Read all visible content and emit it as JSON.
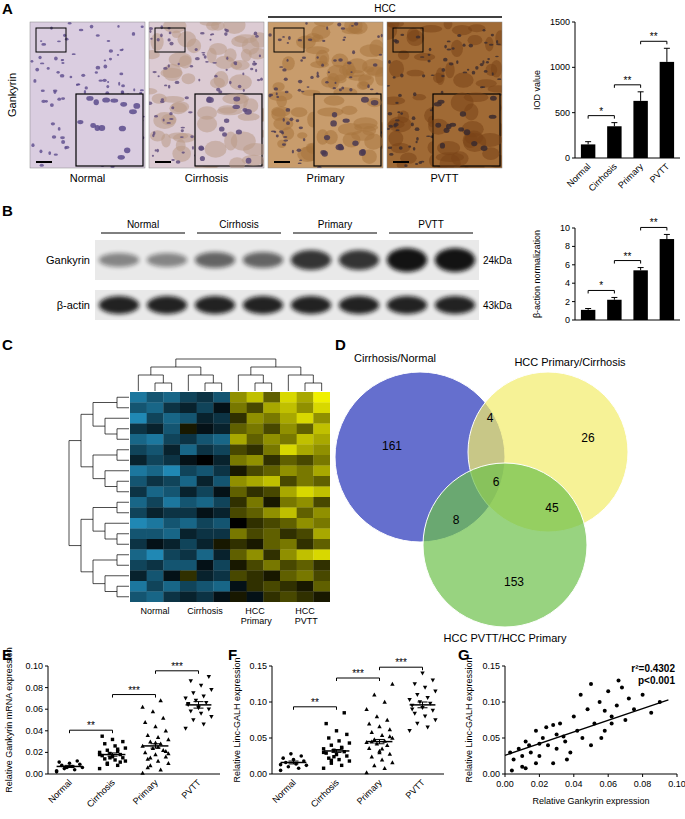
{
  "figure": {
    "panel_labels": [
      "A",
      "B",
      "C",
      "D",
      "E",
      "F",
      "G"
    ],
    "ihc": {
      "row_label": "Gankyrin",
      "group_label": "HCC",
      "images": [
        "Normal",
        "Cirrhosis",
        "Primary",
        "PVTT"
      ]
    },
    "blot": {
      "groups": [
        "Normal",
        "Cirrhosis",
        "Primary",
        "PVTT"
      ],
      "rows": [
        {
          "name": "Gankyrin",
          "size": "24kDa"
        },
        {
          "name": "β-actin",
          "size": "43kDa"
        }
      ]
    }
  },
  "chart_data": [
    {
      "type": "bar",
      "categories": [
        "Normal",
        "Cirrhosis",
        "Primary",
        "PVTT"
      ],
      "values": [
        150,
        350,
        630,
        1060
      ],
      "errors": [
        30,
        40,
        100,
        150
      ],
      "y_label": "IOD value",
      "ylim": [
        0,
        1500
      ],
      "yticks": [
        0,
        500,
        1000,
        1500
      ],
      "color": "#000000",
      "significance": [
        "*",
        "**",
        "**"
      ]
    },
    {
      "type": "bar",
      "categories": [
        null,
        null,
        null,
        null
      ],
      "values": [
        1.1,
        2.2,
        5.4,
        8.8
      ],
      "errors": [
        0.15,
        0.25,
        0.3,
        0.5
      ],
      "y_label": "β-action normalization",
      "ylim": [
        0,
        10
      ],
      "yticks": [
        0,
        2,
        4,
        6,
        8,
        10
      ],
      "color": "#000000",
      "significance": [
        "*",
        "**",
        "**"
      ]
    },
    {
      "type": "heatmap",
      "zlim": [
        -1,
        1
      ],
      "column_groups": [
        {
          "label": "Normal",
          "columns": 3
        },
        {
          "label": "Cirrhosis",
          "columns": 3
        },
        {
          "label": "HCC Primary",
          "columns": 3
        },
        {
          "label": "HCC PVTT",
          "columns": 3
        }
      ],
      "cells": [
        [
          -0.7,
          -0.5,
          -0.6,
          -0.4,
          -0.3,
          -0.5,
          0.6,
          0.8,
          0.4,
          0.9,
          0.7,
          1.0
        ],
        [
          -0.5,
          -0.6,
          -0.3,
          -0.2,
          -0.4,
          -0.1,
          0.5,
          0.3,
          0.7,
          0.8,
          0.6,
          0.9
        ],
        [
          -0.8,
          -0.4,
          -0.6,
          -0.5,
          -0.2,
          -0.3,
          0.2,
          0.6,
          0.5,
          0.7,
          0.9,
          0.6
        ],
        [
          -0.3,
          -0.2,
          -0.5,
          0.1,
          -0.1,
          -0.2,
          0.4,
          0.5,
          0.3,
          0.6,
          0.4,
          0.8
        ],
        [
          -0.6,
          -0.7,
          -0.4,
          -0.3,
          -0.5,
          -0.6,
          0.7,
          0.4,
          0.6,
          0.5,
          0.8,
          0.7
        ],
        [
          -0.4,
          -0.5,
          -0.2,
          -0.6,
          -0.3,
          -0.4,
          0.3,
          0.2,
          0.5,
          0.9,
          0.7,
          0.6
        ],
        [
          -0.2,
          -0.4,
          -0.3,
          -0.1,
          0.0,
          -0.2,
          0.5,
          0.6,
          0.2,
          0.4,
          0.3,
          0.5
        ],
        [
          -0.7,
          -0.6,
          -0.8,
          -0.4,
          -0.5,
          -0.3,
          0.1,
          0.3,
          0.4,
          0.6,
          0.5,
          0.7
        ],
        [
          -0.5,
          -0.3,
          -0.4,
          -0.6,
          -0.2,
          -0.5,
          0.6,
          0.7,
          0.8,
          0.3,
          0.5,
          0.4
        ],
        [
          -0.3,
          -0.6,
          -0.5,
          -0.2,
          -0.4,
          -0.1,
          0.4,
          0.2,
          0.3,
          0.7,
          0.9,
          0.8
        ],
        [
          -0.6,
          -0.4,
          -0.7,
          -0.5,
          -0.6,
          -0.4,
          0.2,
          0.5,
          0.1,
          0.5,
          0.6,
          0.3
        ],
        [
          -0.4,
          -0.2,
          -0.3,
          -0.3,
          -0.1,
          -0.2,
          0.3,
          0.4,
          0.6,
          0.8,
          0.4,
          0.6
        ],
        [
          -0.8,
          -0.7,
          -0.5,
          -0.6,
          -0.4,
          -0.5,
          0.0,
          0.2,
          0.3,
          0.4,
          0.6,
          0.5
        ],
        [
          -0.5,
          -0.5,
          -0.6,
          -0.2,
          -0.3,
          -0.3,
          0.5,
          0.3,
          0.4,
          0.2,
          0.3,
          0.7
        ],
        [
          -0.3,
          -0.1,
          -0.2,
          -0.4,
          -0.2,
          0.1,
          0.2,
          0.1,
          0.4,
          0.5,
          0.2,
          0.4
        ],
        [
          -0.6,
          -0.8,
          -0.4,
          -0.3,
          -0.6,
          -0.2,
          0.4,
          0.6,
          0.2,
          0.6,
          0.8,
          0.9
        ],
        [
          -0.4,
          -0.3,
          -0.5,
          -0.5,
          -0.1,
          -0.4,
          0.1,
          0.3,
          0.5,
          0.3,
          0.4,
          0.2
        ],
        [
          -0.2,
          -0.5,
          -0.1,
          0.2,
          -0.2,
          -0.3,
          0.3,
          0.2,
          0.1,
          0.4,
          0.5,
          0.3
        ],
        [
          -0.7,
          -0.4,
          -0.6,
          -0.4,
          -0.5,
          -0.6,
          -0.1,
          0.2,
          0.3,
          0.2,
          0.1,
          0.4
        ],
        [
          -0.5,
          -0.6,
          -0.3,
          -0.2,
          -0.3,
          -0.1,
          0.1,
          -0.1,
          0.2,
          0.3,
          0.2,
          0.1
        ]
      ]
    },
    {
      "type": "venn",
      "sets": [
        "Cirrhosis/Normal",
        "HCC Primary/Cirrhosis",
        "HCC PVTT/HCC Primary"
      ],
      "colors": [
        "#4a56c6",
        "#f2ec6a",
        "#6cc04a"
      ],
      "regions": {
        "a": 161,
        "ab": 4,
        "b": 26,
        "abc": 6,
        "ac": 8,
        "bc": 45,
        "c": 153
      }
    },
    {
      "type": "strip",
      "y_label": "Relative Gankyrin mRNA expression",
      "ylim": [
        0,
        0.1
      ],
      "yticks": [
        {
          "value": 0,
          "label": "0.00"
        },
        0.02,
        0.04,
        0.06,
        0.08,
        {
          "value": 0.1,
          "label": "0.10"
        }
      ],
      "significance": [
        "**",
        "***",
        "***"
      ],
      "series": [
        {
          "name": "Normal",
          "marker": "circle",
          "values": [
            0.002,
            0.004,
            0.005,
            0.006,
            0.007,
            0.008,
            0.009,
            0.01,
            0.011,
            0.012,
            0.006,
            0.003
          ],
          "mean": 0.007,
          "error": 0.001
        },
        {
          "name": "Cirrhosis",
          "marker": "square",
          "values": [
            0.005,
            0.008,
            0.01,
            0.012,
            0.013,
            0.014,
            0.015,
            0.016,
            0.017,
            0.018,
            0.019,
            0.02,
            0.021,
            0.022,
            0.024,
            0.026,
            0.028,
            0.03,
            0.032,
            0.035,
            0.011,
            0.015,
            0.018,
            0.023,
            0.009
          ],
          "mean": 0.018,
          "error": 0.0015
        },
        {
          "name": "Primary",
          "marker": "triangle",
          "values": [
            0.001,
            0.004,
            0.008,
            0.01,
            0.012,
            0.014,
            0.016,
            0.018,
            0.02,
            0.022,
            0.024,
            0.026,
            0.028,
            0.03,
            0.032,
            0.034,
            0.036,
            0.04,
            0.044,
            0.048,
            0.052,
            0.058,
            0.062,
            0.068,
            0.015,
            0.019,
            0.025,
            0.006,
            0.021,
            0.029
          ],
          "mean": 0.026,
          "error": 0.002
        },
        {
          "name": "PVTT",
          "marker": "triangle-down",
          "values": [
            0.042,
            0.046,
            0.05,
            0.053,
            0.056,
            0.058,
            0.06,
            0.062,
            0.064,
            0.066,
            0.068,
            0.07,
            0.072,
            0.075,
            0.078,
            0.082,
            0.086,
            0.09,
            0.061,
            0.065
          ],
          "mean": 0.064,
          "error": 0.003
        }
      ]
    },
    {
      "type": "strip",
      "y_label": "Relative Linc-GALH expression",
      "ylim": [
        0,
        0.15
      ],
      "yticks": [
        {
          "value": 0,
          "label": "0.00"
        },
        0.05,
        {
          "value": 0.1,
          "label": "0.10"
        },
        0.15
      ],
      "significance": [
        "**",
        "***",
        "***"
      ],
      "series": [
        {
          "name": "Normal",
          "marker": "circle",
          "values": [
            0.005,
            0.008,
            0.01,
            0.012,
            0.014,
            0.016,
            0.018,
            0.02,
            0.022,
            0.025,
            0.028,
            0.013
          ],
          "mean": 0.016,
          "error": 0.002
        },
        {
          "name": "Cirrhosis",
          "marker": "square",
          "values": [
            0.008,
            0.012,
            0.015,
            0.018,
            0.02,
            0.022,
            0.025,
            0.027,
            0.029,
            0.031,
            0.033,
            0.035,
            0.037,
            0.04,
            0.043,
            0.046,
            0.05,
            0.055,
            0.06,
            0.07,
            0.085,
            0.024,
            0.03,
            0.036,
            0.019
          ],
          "mean": 0.032,
          "error": 0.002
        },
        {
          "name": "Primary",
          "marker": "triangle",
          "values": [
            0.002,
            0.008,
            0.012,
            0.016,
            0.02,
            0.024,
            0.028,
            0.032,
            0.036,
            0.04,
            0.042,
            0.044,
            0.046,
            0.048,
            0.05,
            0.054,
            0.058,
            0.062,
            0.066,
            0.07,
            0.075,
            0.08,
            0.09,
            0.1,
            0.11,
            0.125,
            0.035,
            0.045,
            0.052,
            0.03
          ],
          "mean": 0.045,
          "error": 0.003
        },
        {
          "name": "PVTT",
          "marker": "triangle-down",
          "values": [
            0.06,
            0.065,
            0.07,
            0.075,
            0.08,
            0.084,
            0.088,
            0.092,
            0.095,
            0.098,
            0.1,
            0.103,
            0.106,
            0.11,
            0.115,
            0.12,
            0.125,
            0.13,
            0.14,
            0.09
          ],
          "mean": 0.096,
          "error": 0.004
        }
      ]
    },
    {
      "type": "scatter",
      "x_label": "Relative Gankyrin expression",
      "y_label": "Relative Linc-GALH expression",
      "xlim": [
        0,
        0.1
      ],
      "xticks": [
        {
          "value": 0,
          "label": "0.00"
        },
        0.02,
        0.04,
        0.06,
        0.08,
        {
          "value": 0.1,
          "label": "0.10"
        }
      ],
      "ylim": [
        0,
        0.15
      ],
      "yticks": [
        {
          "value": 0,
          "label": "0.00"
        },
        0.05,
        {
          "value": 0.1,
          "label": "0.10"
        },
        0.15
      ],
      "annotations": [
        "r²=0.4302",
        "p<0.001"
      ],
      "x": [
        0.005,
        0.008,
        0.01,
        0.012,
        0.015,
        0.018,
        0.02,
        0.022,
        0.025,
        0.028,
        0.03,
        0.032,
        0.035,
        0.038,
        0.04,
        0.042,
        0.045,
        0.048,
        0.05,
        0.052,
        0.055,
        0.058,
        0.06,
        0.062,
        0.065,
        0.068,
        0.07,
        0.072,
        0.075,
        0.08,
        0.085,
        0.09,
        0.004,
        0.01,
        0.014,
        0.018,
        0.024,
        0.03,
        0.036,
        0.044,
        0.05,
        0.056,
        0.062,
        0.066,
        0.003,
        0.012,
        0.02,
        0.028,
        0.034,
        0.058
      ],
      "values": [
        0.02,
        0.035,
        0.01,
        0.045,
        0.03,
        0.06,
        0.025,
        0.05,
        0.04,
        0.015,
        0.055,
        0.07,
        0.045,
        0.03,
        0.08,
        0.06,
        0.05,
        0.09,
        0.04,
        0.07,
        0.1,
        0.06,
        0.115,
        0.08,
        0.095,
        0.12,
        0.075,
        0.105,
        0.09,
        0.11,
        0.085,
        0.1,
        0.005,
        0.025,
        0.04,
        0.015,
        0.065,
        0.035,
        0.02,
        0.11,
        0.125,
        0.05,
        0.07,
        0.13,
        0.03,
        0.008,
        0.042,
        0.068,
        0.052,
        0.088
      ],
      "fit": {
        "x": [
          0,
          0.095
        ],
        "values": [
          0.026,
          0.103
        ]
      }
    }
  ]
}
